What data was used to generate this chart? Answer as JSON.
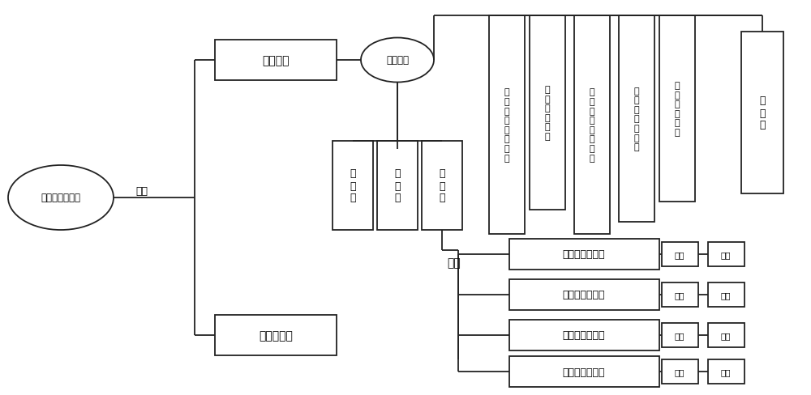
{
  "bg": "#ffffff",
  "engine_label": "发动机或蓄电池",
  "power_label": "通电",
  "link_switch_label": "联动开关",
  "control_panel_label": "控制面板",
  "anti_crash_label": "防碰撞系统",
  "pump_label": "液\n压\n泵",
  "valve_label": "液\n压\n阀",
  "oil_label": "油\n管\n路",
  "axle_label": "车轴",
  "modules": [
    "自\n动\n紧\n急\n启\n动\n模\n块",
    "手\n动\n启\n动\n模\n块",
    "一\n键\n四\n脚\n启\n动\n模\n块",
    "指\n定\n任\n意\n脚\n模\n块",
    "遥\n控\n启\n动\n模\n块"
  ],
  "warning_label": "警\n示\n灯",
  "wheels": [
    "左前轮支撑脚前",
    "右前轮支撑脚前",
    "左后轮支撑脚后",
    "右后轮支撑脚后"
  ],
  "sleeve_label": "调套",
  "pad_label": "垫板"
}
